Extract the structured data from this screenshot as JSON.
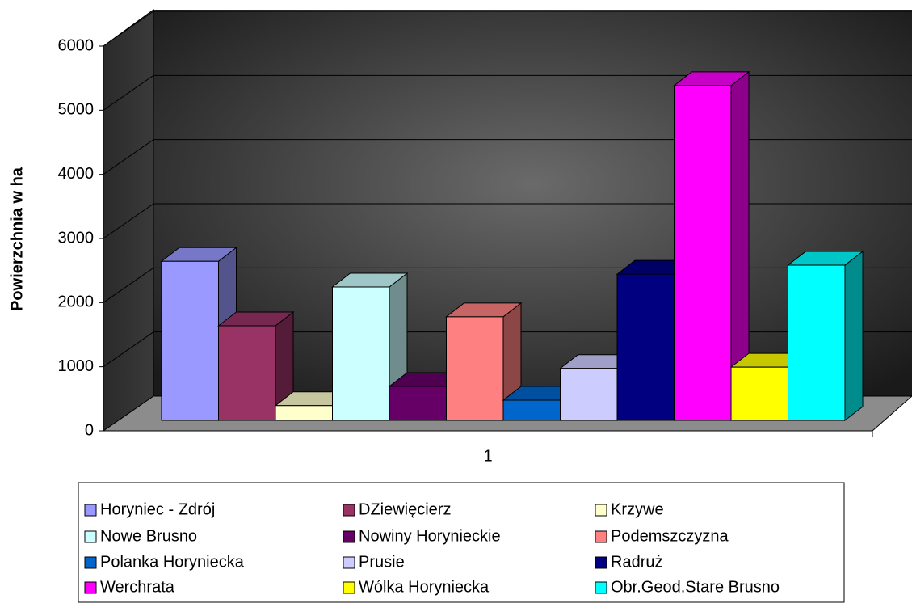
{
  "chart_data": {
    "type": "bar",
    "y_label": "Powierzchnia  w ha",
    "categories": [
      "1"
    ],
    "ylim": [
      0,
      6000
    ],
    "yticks": [
      0,
      1000,
      2000,
      3000,
      4000,
      5000,
      6000
    ],
    "grid": true,
    "legend": "bottom",
    "series": [
      {
        "name": "Horyniec - Zdrój",
        "color": "#9999ff",
        "values": [
          2480
        ]
      },
      {
        "name": "DZiewięcierz",
        "color": "#993366",
        "values": [
          1475
        ]
      },
      {
        "name": "Krzywe",
        "color": "#ffffcc",
        "values": [
          230
        ]
      },
      {
        "name": "Nowe Brusno",
        "color": "#ccffff",
        "values": [
          2080
        ]
      },
      {
        "name": "Nowiny Horynieckie",
        "color": "#660066",
        "values": [
          530
        ]
      },
      {
        "name": "Podemszczyzna",
        "color": "#ff8080",
        "values": [
          1615
        ]
      },
      {
        "name": "Polanka Horyniecka",
        "color": "#0066cc",
        "values": [
          315
        ]
      },
      {
        "name": "Prusie",
        "color": "#ccccff",
        "values": [
          810
        ]
      },
      {
        "name": "Radruż",
        "color": "#000080",
        "values": [
          2280
        ]
      },
      {
        "name": "Werchrata",
        "color": "#ff00ff",
        "values": [
          5220
        ]
      },
      {
        "name": "Wólka Horyniecka",
        "color": "#ffff00",
        "values": [
          830
        ]
      },
      {
        "name": "Obr.Geod.Stare Brusno",
        "color": "#00ffff",
        "values": [
          2420
        ]
      }
    ]
  }
}
